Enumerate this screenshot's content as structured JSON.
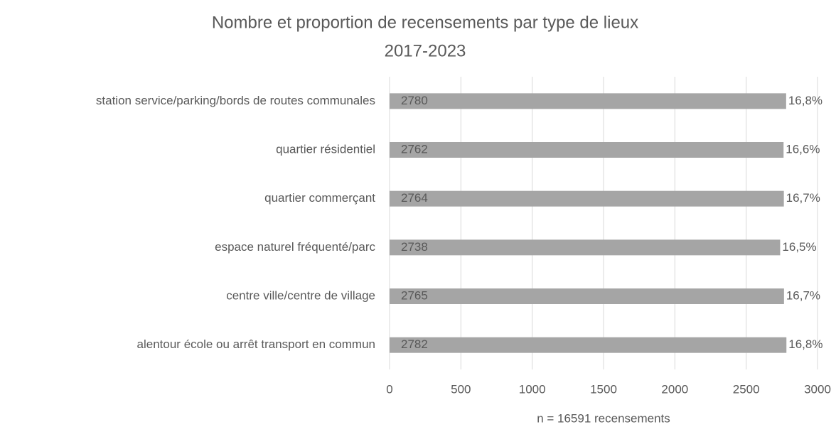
{
  "chart_data": {
    "type": "hbar",
    "title": "Nombre et proportion de recensements par type de lieux",
    "subtitle": "2017-2023",
    "x_label": "n = 16591 recensements",
    "categories": [
      "station service/parking/bords de routes communales",
      "quartier résidentiel",
      "quartier commerçant",
      "espace naturel fréquenté/parc",
      "centre ville/centre de village",
      "alentour école ou arrêt transport en commun"
    ],
    "values": [
      2780,
      2762,
      2764,
      2738,
      2765,
      2782
    ],
    "percent_labels": [
      "16,8%",
      "16,6%",
      "16,7%",
      "16,5%",
      "16,7%",
      "16,8%"
    ],
    "color": "#a5a5a5",
    "xlim": [
      0,
      3000
    ],
    "xticks": [
      0,
      500,
      1000,
      1500,
      2000,
      2500,
      3000
    ],
    "grid": true
  }
}
